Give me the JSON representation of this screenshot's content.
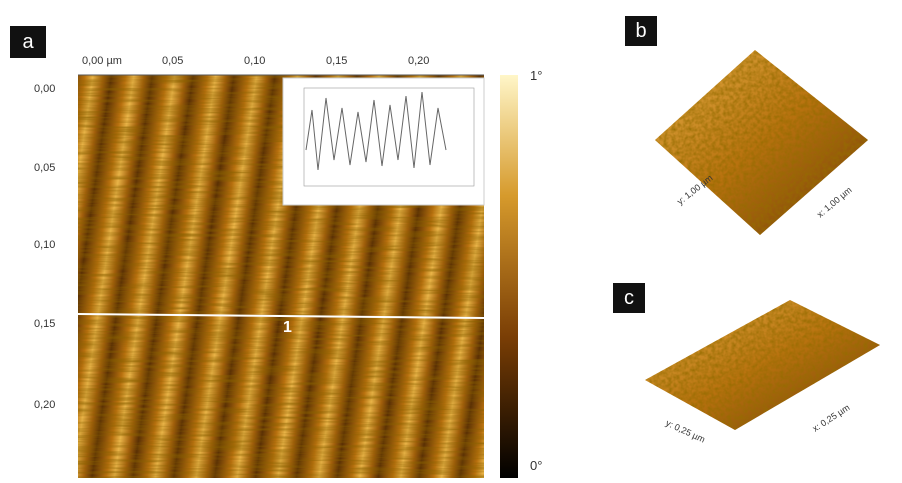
{
  "panels": {
    "a": {
      "label": "a",
      "top_ticks": [
        "0,00 µm",
        "0,05",
        "0,10",
        "0,15",
        "0,20"
      ],
      "left_ticks": [
        "0,00",
        "0,05",
        "0,10",
        "0,15",
        "0,20"
      ],
      "colorbar": {
        "max": "1°",
        "min": "0°"
      },
      "profile_marker": "1"
    },
    "b": {
      "label": "b",
      "y_axis": "y: 1,00 µm",
      "x_axis": "x: 1,00 µm"
    },
    "c": {
      "label": "c",
      "y_axis": "y: 0,25 µm",
      "x_axis": "x: 0,25 µm"
    }
  }
}
